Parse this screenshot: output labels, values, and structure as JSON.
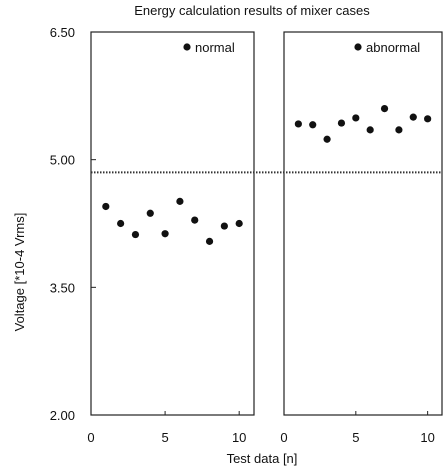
{
  "chart_data": {
    "type": "scatter",
    "title": "Energy calculation results of mixer cases",
    "xlabel": "Test data [n]",
    "ylabel": "Voltage [*10-4 Vrms]",
    "ylim": [
      2.0,
      6.5
    ],
    "yticks": [
      "2.00",
      "3.50",
      "5.00",
      "6.50"
    ],
    "ytick_values": [
      2.0,
      3.5,
      5.0,
      6.5
    ],
    "grid": false,
    "threshold": 4.85,
    "panels": [
      {
        "legend": "normal",
        "xlim": [
          0,
          11
        ],
        "xticks": [
          "0",
          "5",
          "10"
        ],
        "xtick_values": [
          0,
          5,
          10
        ],
        "x": [
          1,
          2,
          3,
          4,
          5,
          6,
          7,
          8,
          9,
          10
        ],
        "y": [
          4.45,
          4.25,
          4.12,
          4.37,
          4.13,
          4.51,
          4.29,
          4.04,
          4.22,
          4.25
        ]
      },
      {
        "legend": "abnormal",
        "xlim": [
          0,
          11
        ],
        "xticks": [
          "0",
          "5",
          "10"
        ],
        "xtick_values": [
          0,
          5,
          10
        ],
        "x": [
          1,
          2,
          3,
          4,
          5,
          6,
          7,
          8,
          9,
          10
        ],
        "y": [
          5.42,
          5.41,
          5.24,
          5.43,
          5.49,
          5.35,
          5.6,
          5.35,
          5.5,
          5.48
        ]
      }
    ]
  }
}
